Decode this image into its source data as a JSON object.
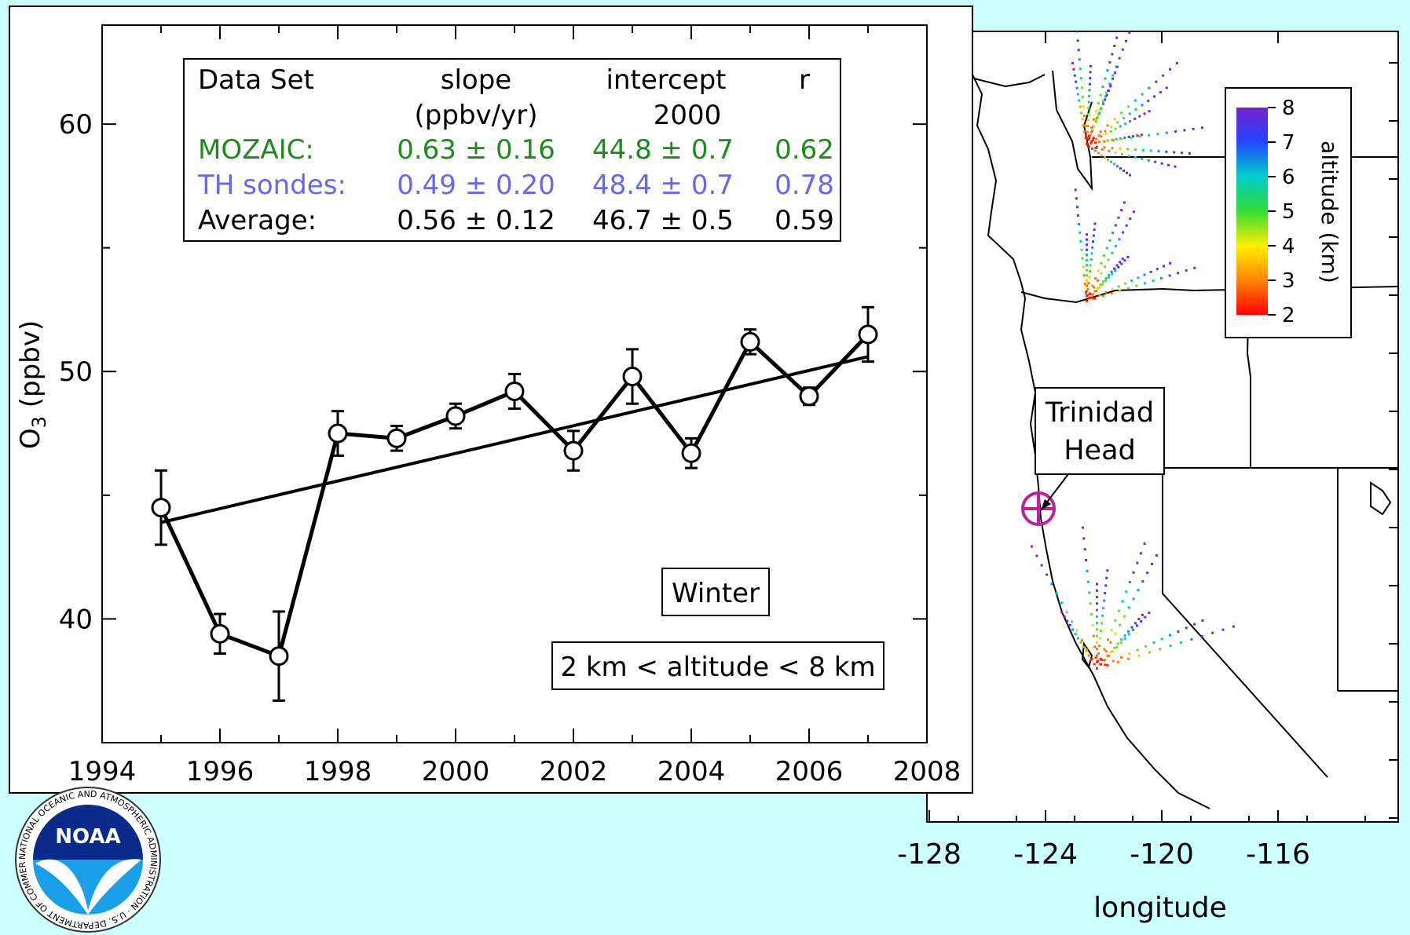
{
  "chart_data": [
    {
      "type": "line",
      "xlabel": "",
      "ylabel": "O3 (ppbv)",
      "xlim": [
        1994,
        2008
      ],
      "ylim": [
        35,
        64
      ],
      "xticks": [
        1994,
        1996,
        1998,
        2000,
        2002,
        2004,
        2006,
        2008
      ],
      "yticks": [
        40,
        50,
        60
      ],
      "series": [
        {
          "x": [
            1995,
            1996,
            1997,
            1998,
            1999,
            2000,
            2001,
            2002,
            2003,
            2004,
            2005,
            2006,
            2007
          ],
          "values": [
            44.5,
            39.4,
            38.5,
            47.5,
            47.3,
            48.2,
            49.2,
            46.8,
            49.8,
            46.7,
            51.2,
            49.0,
            51.5
          ],
          "error": [
            1.5,
            0.8,
            1.8,
            0.9,
            0.5,
            0.5,
            0.7,
            0.8,
            1.1,
            0.6,
            0.5,
            0.35,
            1.1
          ]
        }
      ],
      "trend_line": {
        "x": [
          1995,
          2007
        ],
        "y": [
          43.9,
          50.6
        ]
      },
      "stats_table": {
        "headers": [
          "Data Set",
          "slope",
          "intercept",
          "r"
        ],
        "subheaders": [
          "",
          "(ppbv/yr)",
          "2000",
          ""
        ],
        "rows": [
          {
            "name": "MOZAIC:",
            "slope": "0.63 ± 0.16",
            "intercept": "44.8 ± 0.7",
            "r": "0.62",
            "color": "#1a8c1a"
          },
          {
            "name": "TH sondes:",
            "slope": "0.49 ± 0.20",
            "intercept": "48.4 ± 0.7",
            "r": "0.78",
            "color": "#6666ee"
          },
          {
            "name": "Average:",
            "slope": "0.56 ± 0.12",
            "intercept": "46.7 ± 0.5",
            "r": "0.59",
            "color": "#000000"
          }
        ]
      },
      "annotations": [
        "Winter",
        "2 km < altitude < 8 km"
      ]
    },
    {
      "type": "scatter",
      "xlabel": "longitude",
      "xticks": [
        "-128",
        "-124",
        "-120",
        "-116"
      ],
      "colorbar": {
        "label": "altitude (km)",
        "ticks": [
          "2",
          "3",
          "4",
          "5",
          "6",
          "7",
          "8"
        ],
        "range": [
          2,
          8
        ]
      },
      "site_label": [
        "Trinidad",
        "Head"
      ],
      "site_marker_color": "#bb2299"
    }
  ],
  "logo": {
    "name": "noaa-logo",
    "ring_text": "NATIONAL OCEANIC AND ATMOSPHERIC ADMINISTRATION · U.S. DEPARTMENT OF COMMERCE",
    "center_text": "NOAA"
  },
  "colors": {
    "background": "#ccffff",
    "mozaic": "#1a8c1a",
    "th_sondes": "#6666ee",
    "site": "#bb2299"
  }
}
